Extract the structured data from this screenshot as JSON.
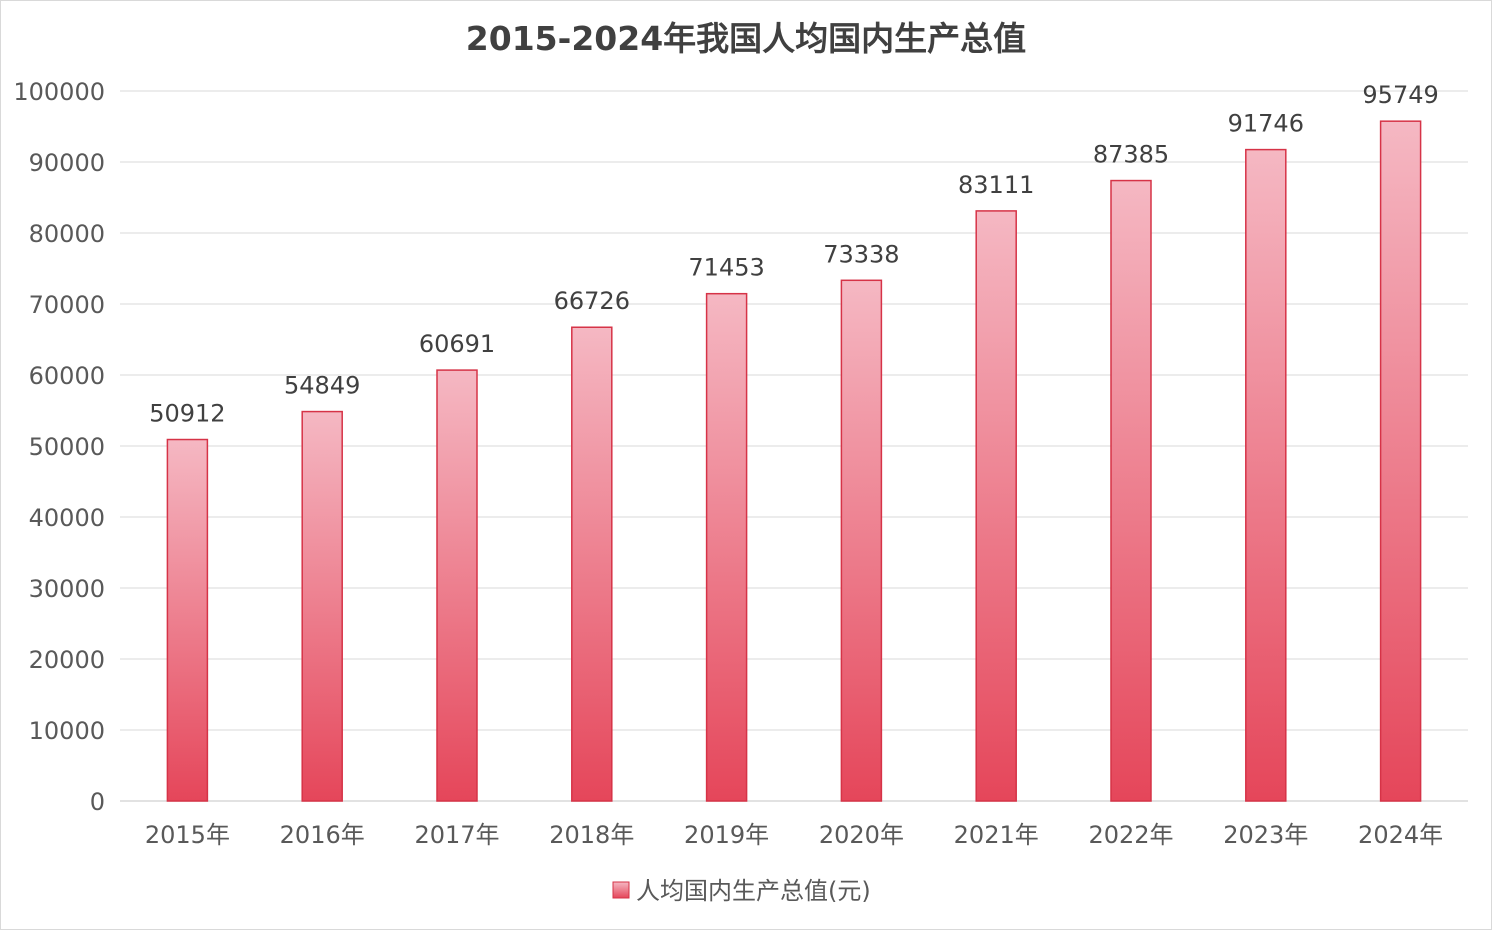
{
  "chart_data": {
    "type": "bar",
    "title": "2015-2024年我国人均国内生产总值",
    "xlabel": "",
    "ylabel": "",
    "categories": [
      "2015年",
      "2016年",
      "2017年",
      "2018年",
      "2019年",
      "2020年",
      "2021年",
      "2022年",
      "2023年",
      "2024年"
    ],
    "series": [
      {
        "name": "人均国内生产总值(元)",
        "values": [
          50912,
          54849,
          60691,
          66726,
          71453,
          73338,
          83111,
          87385,
          91746,
          95749
        ]
      }
    ],
    "ylim": [
      0,
      100000
    ],
    "yticks": [
      0,
      10000,
      20000,
      30000,
      40000,
      50000,
      60000,
      70000,
      80000,
      90000,
      100000
    ],
    "grid": true,
    "legend_position": "bottom",
    "data_labels": true,
    "colors": {
      "bar_top": "#f5b8c3",
      "bar_bottom": "#e5465a",
      "bar_border": "#d63347",
      "grid": "#d9d9d9"
    }
  }
}
